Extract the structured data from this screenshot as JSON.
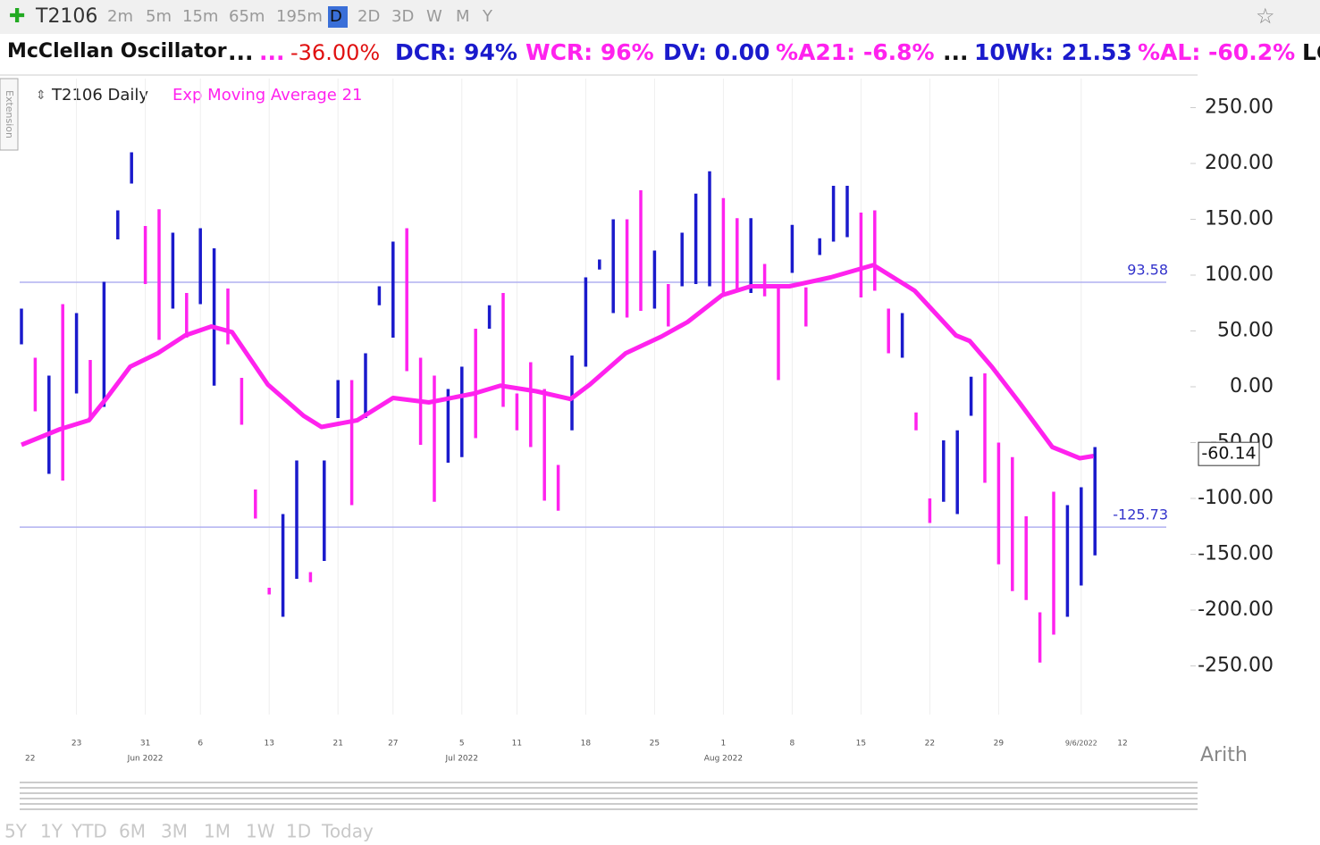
{
  "toolbar": {
    "symbol": "T2106",
    "intervals": [
      "2m",
      "5m",
      "15m",
      "65m",
      "195m",
      "D",
      "2D",
      "3D",
      "W",
      "M",
      "Y"
    ]
  },
  "quote": {
    "name": "McClellan Oscillator",
    "items": [
      "...",
      "...",
      "-36.00%",
      "DCR: 94%",
      "WCR: 96%",
      "DV: 0.00",
      "%A21: -6.8%",
      "...",
      "10Wk: 21.53",
      "%AL: -60.2%",
      "LC"
    ]
  },
  "side_tab": "Extension",
  "scale_mode": "Arith",
  "ranges": [
    "5Y",
    "1Y",
    "YTD",
    "6M",
    "3M",
    "1M",
    "1W",
    "1D",
    "Today"
  ],
  "chart_data": {
    "type": "ohlc",
    "title": "T2106 Daily",
    "indicator": {
      "name": "Exp Moving Average 21",
      "color": "#ff22ee",
      "x": [
        0,
        2.8,
        4.9,
        6.2,
        7.9,
        9.9,
        11.9,
        13.8,
        15.3,
        17.9,
        20.5,
        21.8,
        24.4,
        27,
        29.6,
        32.9,
        34.8,
        37.4,
        39.9,
        41.3,
        43.9,
        46.5,
        48.4,
        50.9,
        53,
        55.8,
        58.8,
        61.9,
        64.9,
        67.9,
        68.9,
        70.5,
        72.5,
        74.9,
        76.9,
        77.9
      ],
      "values": [
        -52,
        -38,
        -30,
        -10,
        18,
        30,
        46,
        54,
        49,
        2,
        -26,
        -36,
        -30,
        -10,
        -14,
        -6,
        1,
        -4,
        -11,
        2,
        30,
        45,
        58,
        82,
        90,
        90,
        98,
        109,
        86,
        46,
        41,
        18,
        -14,
        -54,
        -64,
        -62
      ]
    },
    "categories": [
      null,
      null,
      null,
      null,
      "23",
      null,
      null,
      null,
      null,
      "31",
      null,
      null,
      null,
      "6",
      null,
      null,
      null,
      null,
      "13",
      null,
      null,
      null,
      null,
      "21",
      null,
      null,
      null,
      "27",
      null,
      null,
      null,
      null,
      "5",
      null,
      null,
      null,
      "11",
      null,
      null,
      null,
      null,
      "18",
      null,
      null,
      null,
      null,
      "25",
      null,
      null,
      null,
      null,
      "1",
      null,
      null,
      null,
      null,
      "8",
      null,
      null,
      null,
      null,
      "15",
      null,
      null,
      null,
      null,
      "22",
      null,
      null,
      null,
      null,
      "29",
      null,
      null,
      null,
      null,
      null,
      "9/6/2022",
      null
    ],
    "next_label": "12",
    "months": [
      {
        "label": "22",
        "category": 0
      },
      {
        "label": "Jun 2022",
        "category": 9
      },
      {
        "label": "Jul 2022",
        "category": 32
      },
      {
        "label": "Aug 2022",
        "category": 51
      }
    ],
    "high": [
      70,
      26,
      10,
      74,
      66,
      24,
      94,
      158,
      210,
      144,
      159,
      138,
      84,
      142,
      124,
      88,
      8,
      -92,
      -180,
      -114,
      -66,
      -166,
      -66,
      6,
      6,
      30,
      90,
      130,
      142,
      26,
      10,
      -2,
      18,
      52,
      73,
      84,
      -6,
      22,
      -2,
      -70,
      28,
      98,
      114,
      150,
      150,
      176,
      122,
      92,
      138,
      173,
      193,
      169,
      151,
      151,
      110,
      90,
      145,
      89,
      133,
      180,
      180,
      156,
      158,
      70,
      66,
      -23,
      -100,
      -48,
      -39,
      9,
      12,
      -50,
      -63,
      -116,
      -202,
      -94,
      -106,
      -90,
      -54
    ],
    "low": [
      38,
      -22,
      -78,
      -84,
      -6,
      -30,
      -18,
      132,
      182,
      92,
      42,
      70,
      44,
      74,
      1,
      38,
      -34,
      -118,
      -186,
      -206,
      -172,
      -175,
      -156,
      -28,
      -106,
      -28,
      73,
      44,
      14,
      -52,
      -103,
      -68,
      -63,
      -46,
      52,
      -18,
      -39,
      -54,
      -102,
      -111,
      -39,
      18,
      105,
      66,
      62,
      68,
      70,
      54,
      90,
      92,
      90,
      82,
      86,
      84,
      81,
      6,
      102,
      54,
      118,
      130,
      134,
      80,
      86,
      30,
      26,
      -39,
      -122,
      -103,
      -114,
      -26,
      -86,
      -159,
      -183,
      -191,
      -247,
      -222,
      -206,
      -178,
      -151
    ],
    "colors": [
      "#1a1acc",
      "#ff22ee"
    ],
    "bar_color": [
      0,
      1,
      0,
      1,
      0,
      1,
      0,
      0,
      0,
      1,
      1,
      0,
      1,
      0,
      0,
      1,
      1,
      1,
      1,
      0,
      0,
      1,
      0,
      0,
      1,
      0,
      0,
      0,
      1,
      1,
      1,
      0,
      0,
      1,
      0,
      1,
      1,
      1,
      1,
      1,
      0,
      0,
      0,
      0,
      1,
      1,
      0,
      1,
      0,
      0,
      0,
      1,
      1,
      0,
      1,
      1,
      0,
      1,
      0,
      0,
      0,
      1,
      1,
      1,
      0,
      1,
      1,
      0,
      0,
      0,
      1,
      1,
      1,
      1,
      1,
      1,
      0,
      0,
      0
    ],
    "hlines": [
      {
        "value": 93.58,
        "label": "93.58"
      },
      {
        "value": -125.73,
        "label": "-125.73"
      }
    ],
    "last": {
      "value": -60.14,
      "label": "-60.14"
    },
    "ylim": [
      -295,
      276
    ],
    "yticks": [
      {
        "value": 250,
        "label": "250.00"
      },
      {
        "value": 200,
        "label": "200.00"
      },
      {
        "value": 150,
        "label": "150.00"
      },
      {
        "value": 100,
        "label": "100.00"
      },
      {
        "value": 50,
        "label": "50.00"
      },
      {
        "value": 0,
        "label": "0.00"
      },
      {
        "value": -50,
        "label": "-50.00"
      },
      {
        "value": -100,
        "label": "-100.00"
      },
      {
        "value": -150,
        "label": "-150.00"
      },
      {
        "value": -200,
        "label": "-200.00"
      },
      {
        "value": -250,
        "label": "-250.00"
      }
    ]
  }
}
